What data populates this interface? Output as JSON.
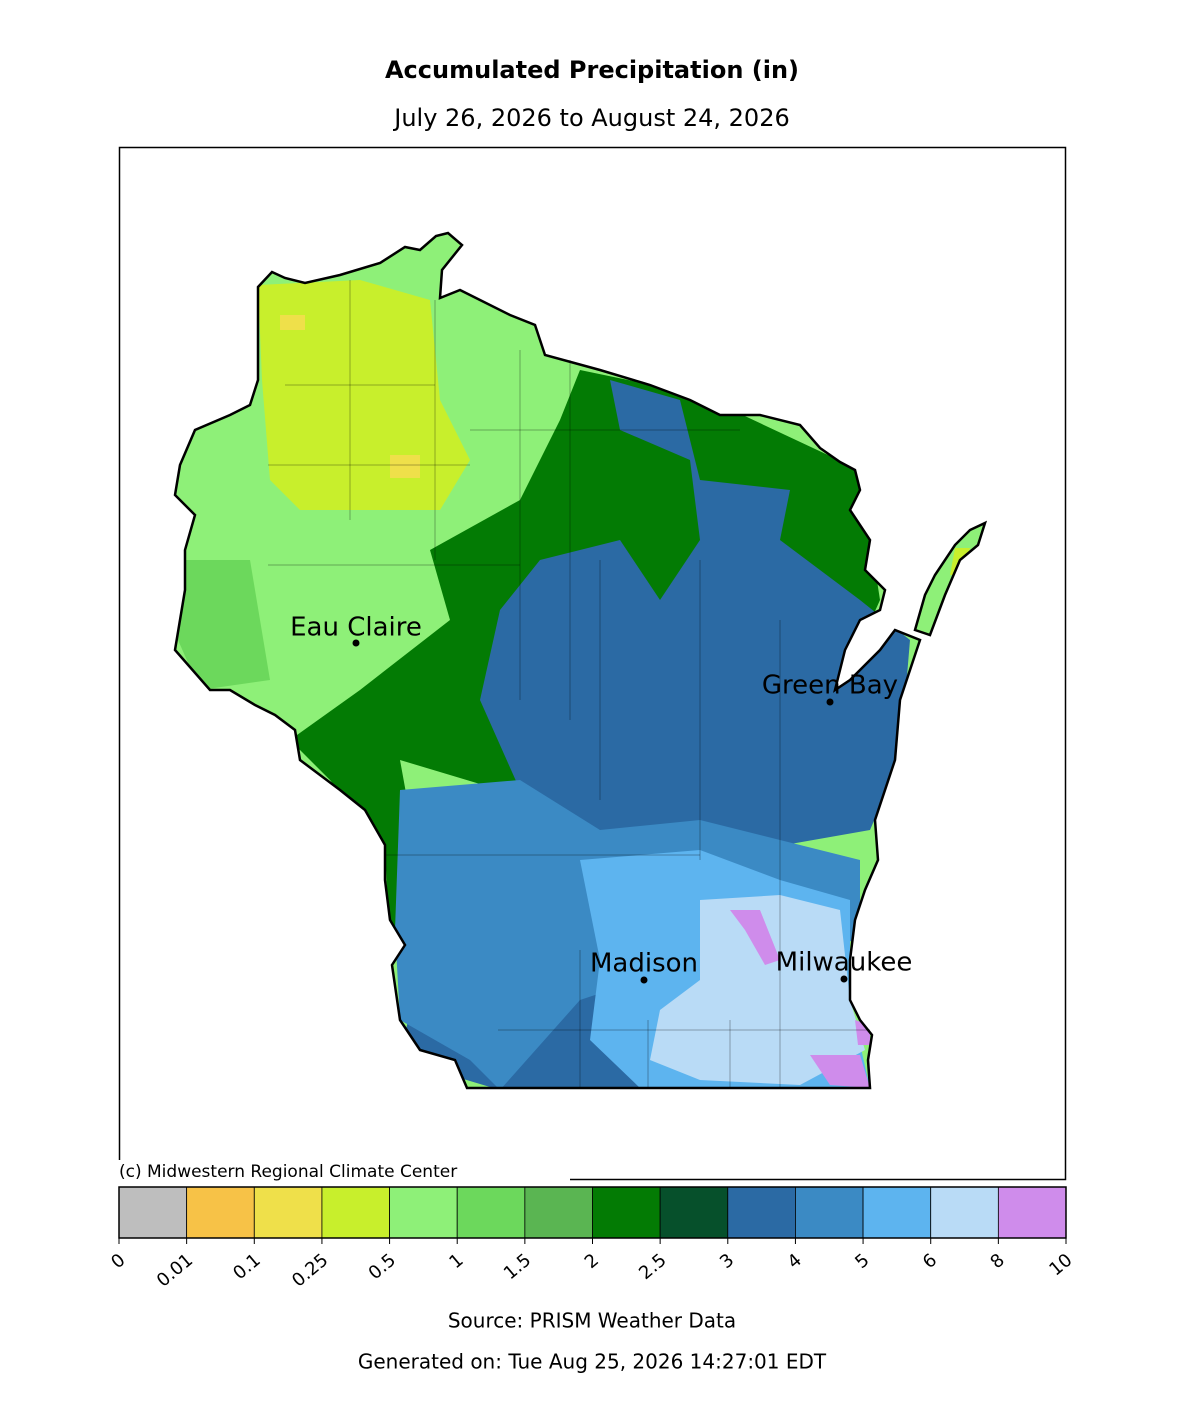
{
  "title": "Accumulated Precipitation (in)",
  "subtitle": "July 26, 2026 to August 24, 2026",
  "cities": [
    {
      "name": "Eau Claire"
    },
    {
      "name": "Green Bay"
    },
    {
      "name": "Madison"
    },
    {
      "name": "Milwaukee"
    }
  ],
  "credit": "(c) Midwestern Regional Climate Center",
  "colorbar": {
    "colors": [
      "#bebebe",
      "#f7c247",
      "#efe04a",
      "#c8ef2c",
      "#8ef078",
      "#6cd85c",
      "#5ab552",
      "#037b04",
      "#06502b",
      "#2b6aa4",
      "#3b8ac4",
      "#5db4ef",
      "#b9dbf6",
      "#cf8ceb"
    ],
    "ticks": [
      0,
      0.01,
      0.1,
      0.25,
      0.5,
      1,
      1.5,
      2,
      2.5,
      3,
      4,
      5,
      6,
      8,
      10
    ]
  },
  "source": "Source: PRISM Weather Data",
  "generated": "Generated on: Tue Aug 25, 2026 14:27:01 EDT"
}
